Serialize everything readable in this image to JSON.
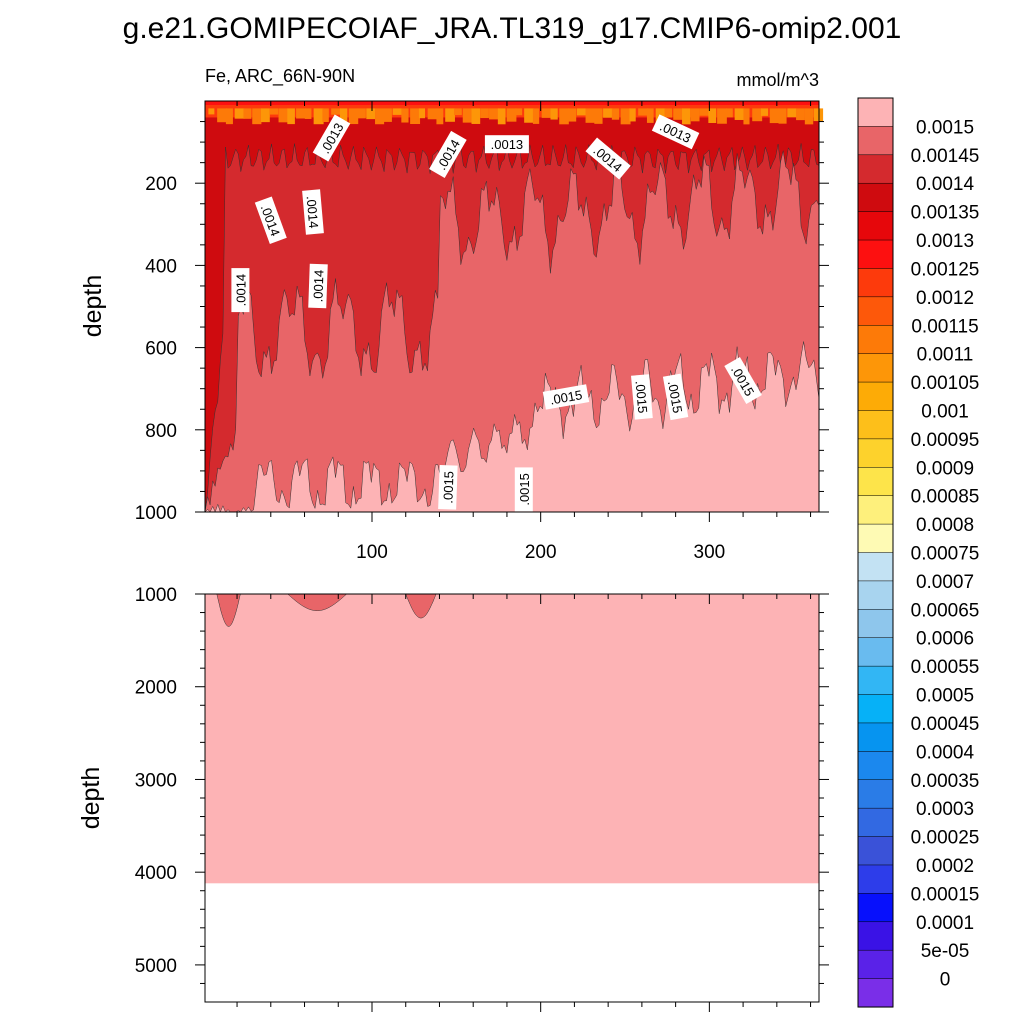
{
  "chart_data": {
    "type": "heatmap",
    "title": "g.e21.GOMIPECOIAF_JRA.TL319_g17.CMIP6-omip2.001",
    "subtitle_left": "Fe, ARC_66N-90N",
    "subtitle_right": "mmol/m^3",
    "xlabel": "",
    "ylabel": "depth",
    "grid": false,
    "legend_position": "right",
    "top_panel": {
      "xlim": [
        1,
        365
      ],
      "ylim": [
        1000,
        0
      ],
      "xticks": [
        100,
        200,
        300
      ],
      "yticks": [
        200,
        400,
        600,
        800,
        1000
      ],
      "contour_labels": [
        {
          "text": ".0013",
          "x": 76,
          "y": 90
        },
        {
          "text": ".0014",
          "x": 145,
          "y": 130
        },
        {
          "text": ".0013",
          "x": 180,
          "y": 105
        },
        {
          "text": ".0014",
          "x": 240,
          "y": 140
        },
        {
          "text": ".0013",
          "x": 280,
          "y": 75
        },
        {
          "text": ".0014",
          "x": 40,
          "y": 290
        },
        {
          "text": ".0014",
          "x": 65,
          "y": 270
        },
        {
          "text": ".0014",
          "x": 22,
          "y": 460
        },
        {
          "text": ".0014",
          "x": 68,
          "y": 450
        },
        {
          "text": ".0015",
          "x": 215,
          "y": 720
        },
        {
          "text": ".0015",
          "x": 260,
          "y": 720
        },
        {
          "text": ".0015",
          "x": 280,
          "y": 720
        },
        {
          "text": ".0015",
          "x": 320,
          "y": 680
        },
        {
          "text": ".0015",
          "x": 145,
          "y": 940
        },
        {
          "text": ".0015",
          "x": 190,
          "y": 945
        }
      ]
    },
    "bottom_panel": {
      "xlim": [
        1,
        365
      ],
      "ylim": [
        5400,
        1000
      ],
      "xticks": [
        100,
        200,
        300
      ],
      "yticks": [
        1000,
        2000,
        3000,
        4000,
        5000
      ],
      "fill_bottom_depth": 4120
    },
    "colorbar": {
      "labels": [
        "0.0015",
        "0.00145",
        "0.0014",
        "0.00135",
        "0.0013",
        "0.00125",
        "0.0012",
        "0.00115",
        "0.0011",
        "0.00105",
        "0.001",
        "0.00095",
        "0.0009",
        "0.00085",
        "0.0008",
        "0.00075",
        "0.0007",
        "0.00065",
        "0.0006",
        "0.00055",
        "0.0005",
        "0.00045",
        "0.0004",
        "0.00035",
        "0.0003",
        "0.00025",
        "0.0002",
        "0.00015",
        "0.0001",
        "5e-05",
        "0"
      ],
      "colors": [
        "#fdb3b5",
        "#e86568",
        "#d42a2e",
        "#cf0b0f",
        "#e6070b",
        "#fd1010",
        "#fd3a0c",
        "#fd580a",
        "#fd7a08",
        "#fd9608",
        "#fdab06",
        "#fdbf1a",
        "#fdd22c",
        "#fde44a",
        "#fef07c",
        "#fefab4",
        "#c3e2f3",
        "#a8d4ef",
        "#8ec6ec",
        "#69bbef",
        "#32b6f4",
        "#06b1f7",
        "#0694f0",
        "#1b88ee",
        "#2a7ce7",
        "#3269e2",
        "#3a52d8",
        "#2d3dea",
        "#0710fc",
        "#3a12e6",
        "#5a22e8",
        "#7a2ee8"
      ]
    }
  }
}
